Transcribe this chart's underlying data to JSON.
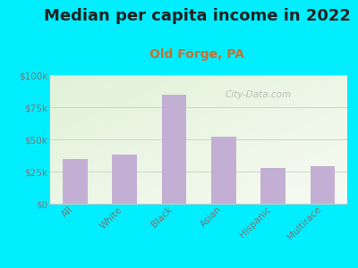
{
  "title": "Median per capita income in 2022",
  "subtitle": "Old Forge, PA",
  "categories": [
    "All",
    "White",
    "Black",
    "Asian",
    "Hispanic",
    "Multirace"
  ],
  "values": [
    35000,
    38000,
    85000,
    52000,
    28000,
    29000
  ],
  "bar_color": "#c4afd4",
  "title_fontsize": 13,
  "subtitle_fontsize": 10,
  "subtitle_color": "#c87030",
  "title_color": "#222222",
  "background_outer": "#00eeff",
  "ylim": [
    0,
    100000
  ],
  "yticks": [
    0,
    25000,
    50000,
    75000,
    100000
  ],
  "ytick_labels": [
    "$0",
    "$25k",
    "$50k",
    "$75k",
    "$100k"
  ],
  "watermark": "City-Data.com",
  "tick_color": "#777777",
  "grid_color": "#cccccc",
  "bar_width": 0.5
}
